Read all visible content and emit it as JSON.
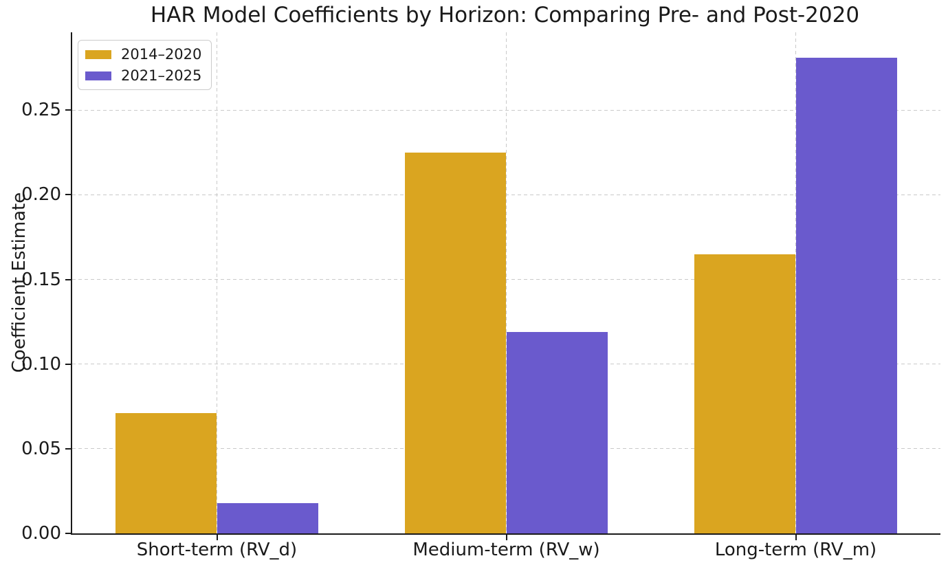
{
  "chart_data": {
    "type": "bar",
    "title": "HAR Model Coefficients by Horizon: Comparing Pre- and Post-2020",
    "xlabel": "",
    "ylabel": "Coefficient Estimate",
    "categories": [
      "Short-term (RV_d)",
      "Medium-term (RV_w)",
      "Long-term (RV_m)"
    ],
    "series": [
      {
        "name": "2014–2020",
        "color": "#DAA520",
        "values": [
          0.071,
          0.225,
          0.165
        ]
      },
      {
        "name": "2021–2025",
        "color": "#6A5ACD",
        "values": [
          0.018,
          0.119,
          0.281
        ]
      }
    ],
    "ylim": [
      0,
      0.296
    ],
    "yticks": [
      {
        "value": 0.0,
        "label": "0.00"
      },
      {
        "value": 0.05,
        "label": "0.05"
      },
      {
        "value": 0.1,
        "label": "0.10"
      },
      {
        "value": 0.15,
        "label": "0.15"
      },
      {
        "value": 0.2,
        "label": "0.20"
      },
      {
        "value": 0.25,
        "label": "0.25"
      }
    ],
    "bar_width": 0.35,
    "grid": "dashed",
    "legend_position": "upper-left",
    "colors": {
      "axis": "#1a1a1a",
      "grid": "#c9c9c9",
      "text": "#1a1a1a",
      "background": "#ffffff"
    }
  }
}
